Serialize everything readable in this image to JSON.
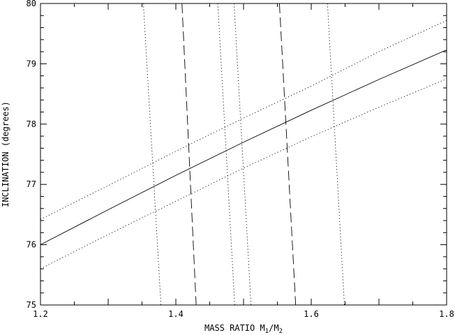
{
  "chart_data": {
    "type": "line",
    "xlabel": {
      "main": "MASS RATIO M",
      "sub1": "1",
      "slash": "/M",
      "sub2": "2"
    },
    "ylabel": "INCLINATION (degrees)",
    "xlim": [
      1.2,
      1.8
    ],
    "ylim": [
      75,
      80
    ],
    "x_ticks": [
      "1.2",
      "1.4",
      "1.6",
      "1.8"
    ],
    "y_ticks": [
      "75",
      "76",
      "77",
      "78",
      "79",
      "80"
    ],
    "grid": false,
    "series": [
      {
        "style": "solid",
        "x": [
          1.2,
          1.3,
          1.4,
          1.5,
          1.6,
          1.7,
          1.8
        ],
        "y": [
          76.0,
          76.58,
          77.15,
          77.7,
          78.23,
          78.74,
          79.23
        ]
      },
      {
        "style": "dotted",
        "x": [
          1.2,
          1.3,
          1.4,
          1.5,
          1.6,
          1.7,
          1.8
        ],
        "y": [
          76.42,
          76.98,
          77.55,
          78.1,
          78.63,
          79.2,
          79.72
        ]
      },
      {
        "style": "dotted",
        "x": [
          1.2,
          1.3,
          1.4,
          1.5,
          1.6,
          1.7,
          1.8
        ],
        "y": [
          75.6,
          76.17,
          76.72,
          77.27,
          77.79,
          78.28,
          78.75
        ]
      },
      {
        "style": "dashed",
        "x": [
          1.409,
          1.43
        ],
        "y": [
          80,
          75
        ]
      },
      {
        "style": "dashed",
        "x": [
          1.553,
          1.577
        ],
        "y": [
          80,
          75
        ]
      },
      {
        "style": "dotted",
        "x": [
          1.352,
          1.378
        ],
        "y": [
          80,
          75
        ]
      },
      {
        "style": "dotted",
        "x": [
          1.462,
          1.487
        ],
        "y": [
          80,
          75
        ]
      },
      {
        "style": "dotted",
        "x": [
          1.486,
          1.511
        ],
        "y": [
          80,
          75
        ]
      },
      {
        "style": "dotted",
        "x": [
          1.624,
          1.649
        ],
        "y": [
          80,
          75
        ]
      }
    ]
  }
}
